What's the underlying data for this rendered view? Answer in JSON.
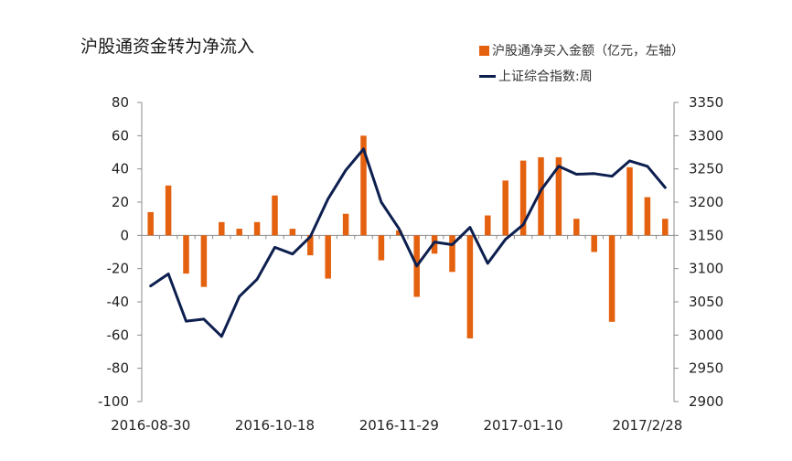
{
  "chart_data": {
    "type": "bar+line",
    "title": "沪股通资金转为净流入",
    "x_tick_labels": [
      "2016-08-30",
      "2016-10-18",
      "2016-11-29",
      "2017-01-10",
      "2017/2/28"
    ],
    "x_tick_label_bar_index": [
      0,
      7,
      14,
      21,
      28
    ],
    "left_axis": {
      "min": -100,
      "max": 80,
      "step": 20,
      "ticks": [
        80,
        60,
        40,
        20,
        0,
        -20,
        -40,
        -60,
        -80,
        -100
      ]
    },
    "right_axis": {
      "min": 2900,
      "max": 3350,
      "step": 50,
      "ticks": [
        3350,
        3300,
        3250,
        3200,
        3150,
        3100,
        3050,
        3000,
        2950,
        2900
      ]
    },
    "series": [
      {
        "name": "沪股通净买入金额（亿元，左轴）",
        "type": "bar",
        "axis": "left",
        "color": "#e4610f",
        "values": [
          14,
          30,
          -23,
          -31,
          8,
          4,
          8,
          24,
          4,
          -12,
          -26,
          13,
          60,
          -15,
          3,
          -37,
          -11,
          -22,
          -62,
          12,
          33,
          45,
          47,
          47,
          10,
          -10,
          -52,
          41,
          23,
          10
        ]
      },
      {
        "name": "上证综合指数:周",
        "type": "line",
        "axis": "right",
        "color": "#0d1f4f",
        "values": [
          3074,
          3092,
          3021,
          3024,
          2998,
          3058,
          3084,
          3132,
          3122,
          3148,
          3205,
          3248,
          3280,
          3200,
          3160,
          3104,
          3140,
          3136,
          3162,
          3108,
          3144,
          3166,
          3218,
          3254,
          3242,
          3243,
          3239,
          3262,
          3254,
          3222
        ]
      }
    ]
  }
}
